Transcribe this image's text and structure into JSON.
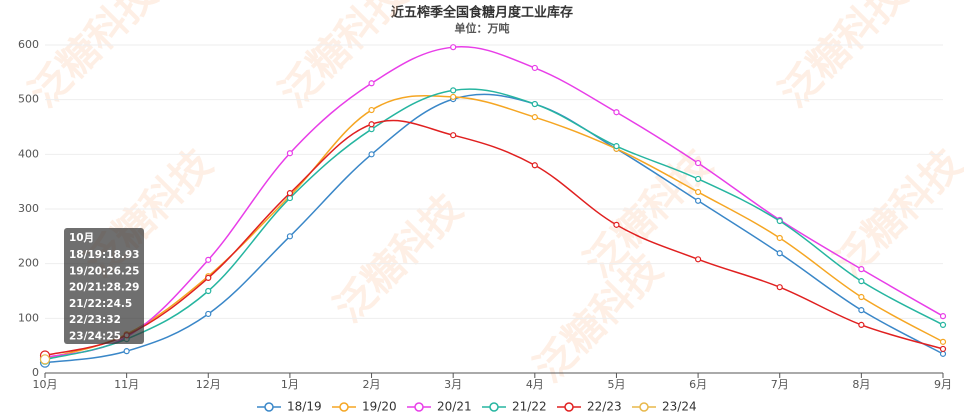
{
  "chart_data": {
    "type": "line",
    "title": "近五榨季全国食糖月度工业库存",
    "subtitle": "单位：万吨",
    "watermark": "泛糖科技",
    "categories": [
      "10月",
      "11月",
      "12月",
      "1月",
      "2月",
      "3月",
      "4月",
      "5月",
      "6月",
      "7月",
      "8月",
      "9月"
    ],
    "ylim": [
      0,
      600
    ],
    "yticks": [
      0,
      100,
      200,
      300,
      400,
      500,
      600
    ],
    "grid": true,
    "legend": "bottom",
    "series": [
      {
        "name": "18/19",
        "color": "#3a87c8",
        "values": [
          18.93,
          40,
          108,
          250,
          400,
          501,
          492,
          410,
          315,
          219,
          115,
          35
        ]
      },
      {
        "name": "19/20",
        "color": "#f5a623",
        "values": [
          26.25,
          71,
          177,
          324,
          481,
          505,
          468,
          410,
          331,
          247,
          139,
          57
        ]
      },
      {
        "name": "20/21",
        "color": "#e83ee8",
        "values": [
          28.29,
          66,
          207,
          402,
          530,
          596,
          558,
          477,
          384,
          280,
          190,
          104
        ]
      },
      {
        "name": "21/22",
        "color": "#26b5a0",
        "values": [
          24.5,
          62,
          150,
          320,
          446,
          517,
          492,
          415,
          355,
          278,
          168,
          88
        ]
      },
      {
        "name": "22/23",
        "color": "#e02020",
        "values": [
          32,
          69,
          174,
          329,
          455,
          435,
          380,
          271,
          208,
          157,
          88,
          44
        ]
      },
      {
        "name": "23/24",
        "color": "#e8b84a",
        "values": [
          25,
          null,
          null,
          null,
          null,
          null,
          null,
          null,
          null,
          null,
          null,
          null
        ]
      }
    ],
    "tooltip": {
      "title": "10月",
      "lines": [
        "18/19:18.93",
        "19/20:26.25",
        "20/21:28.29",
        "21/22:24.5",
        "22/23:32",
        "23/24:25"
      ]
    }
  }
}
